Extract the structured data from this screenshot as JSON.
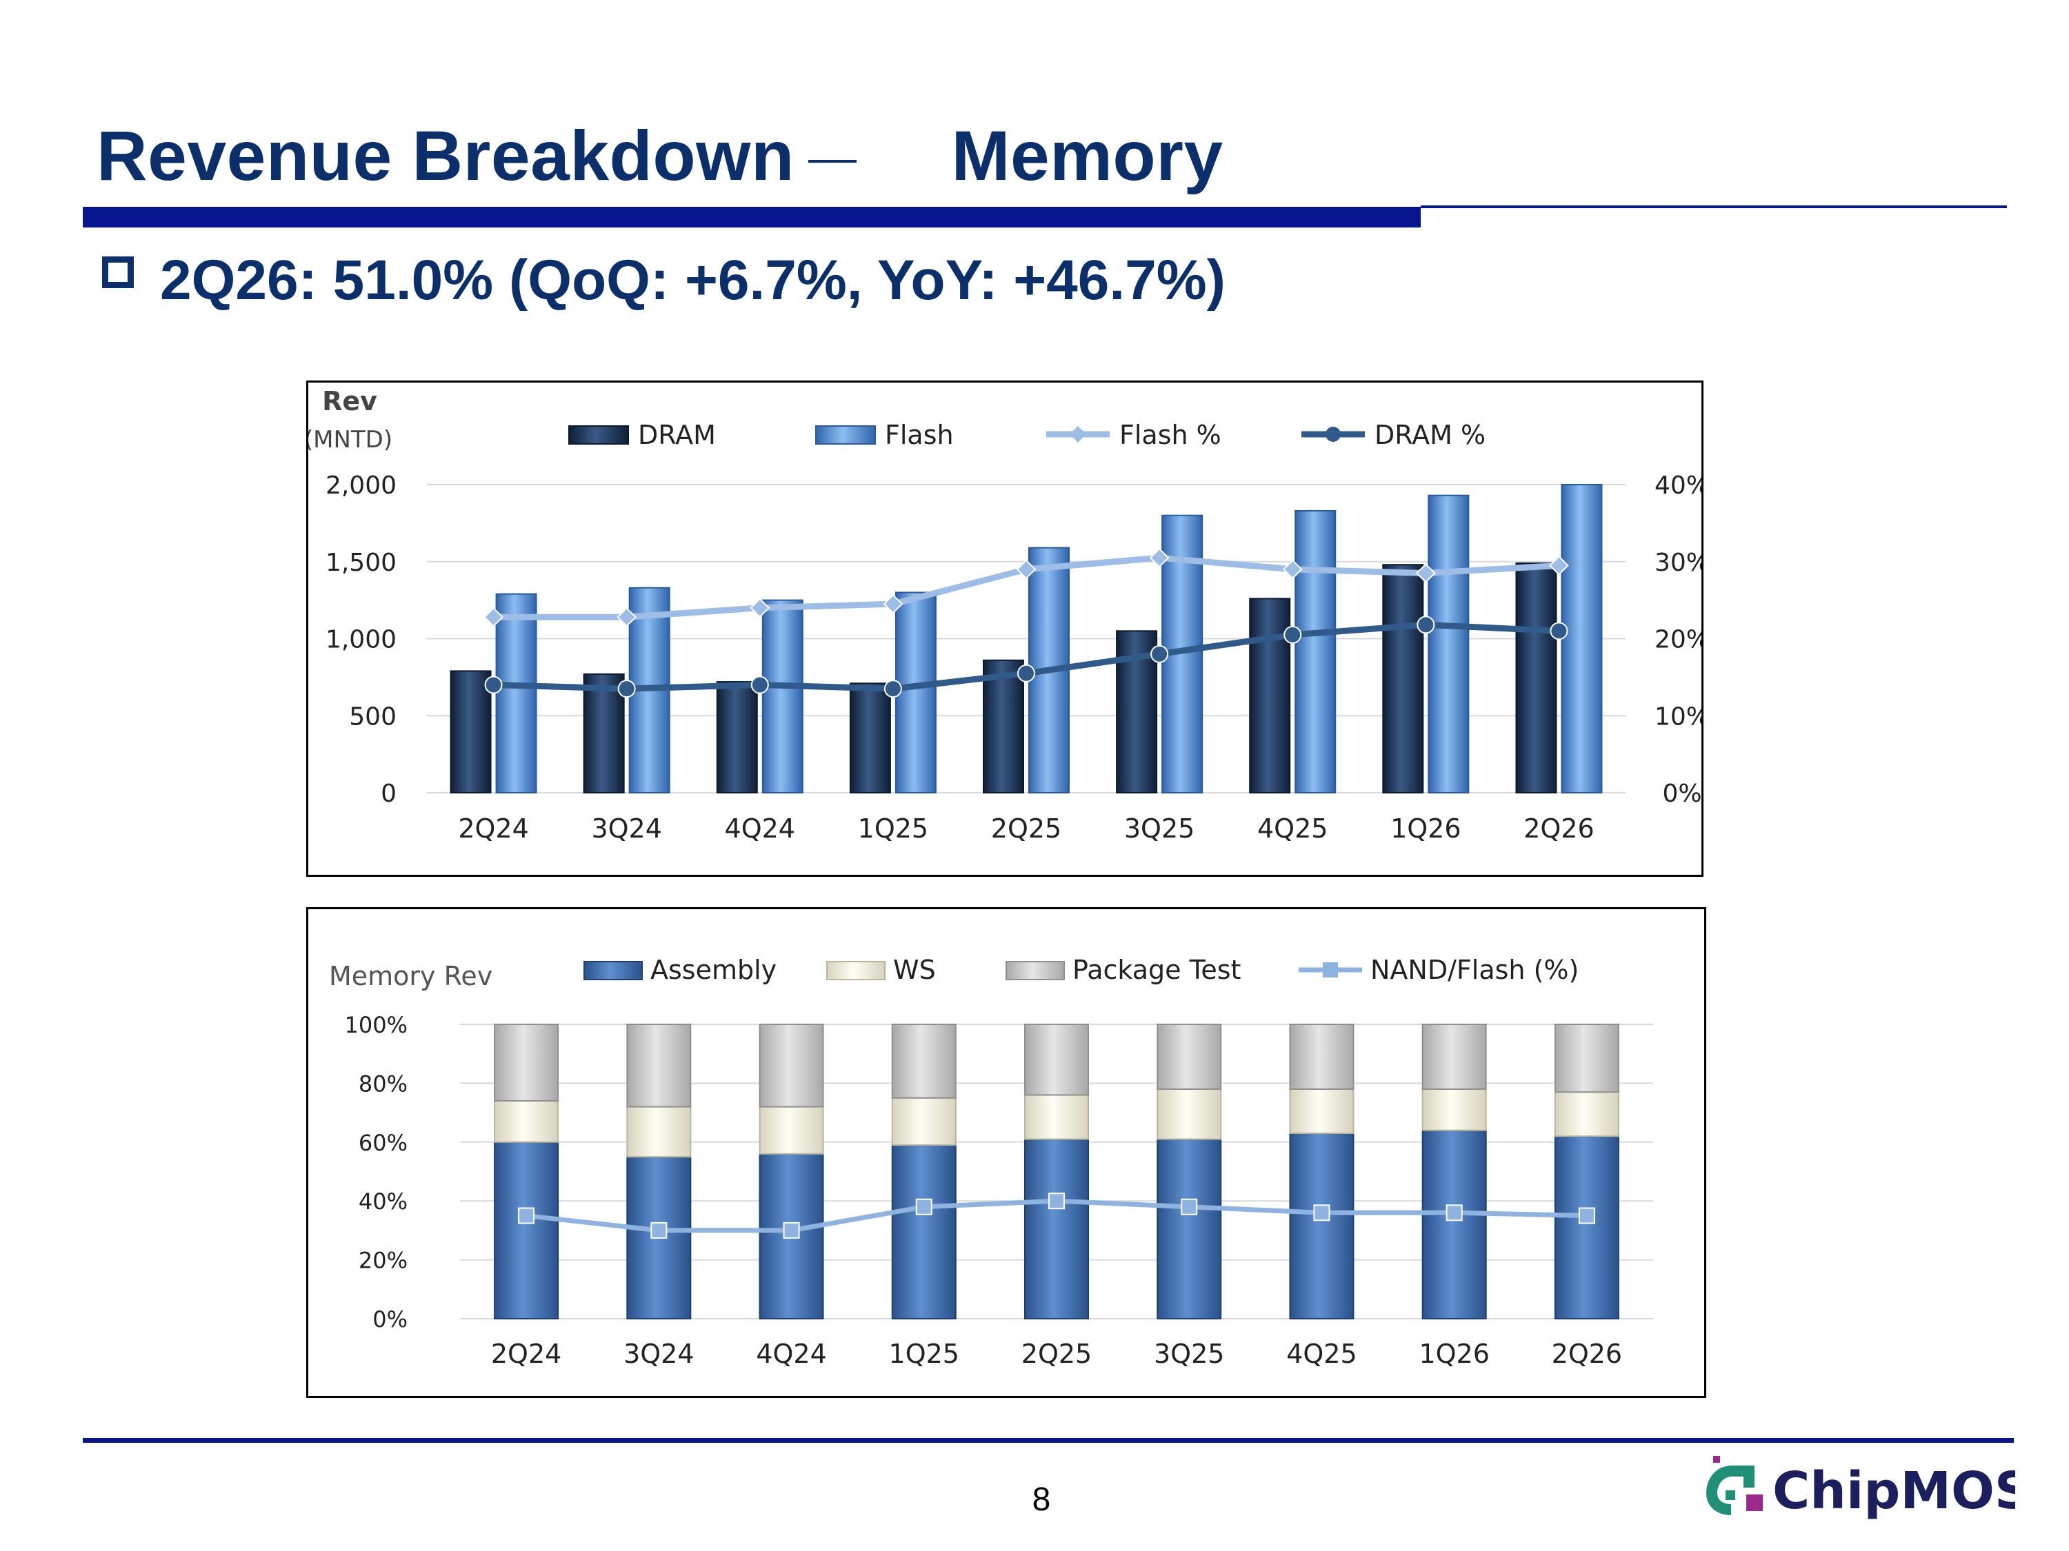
{
  "title": {
    "left": "Revenue Breakdown",
    "right": "Memory"
  },
  "subtitle": "2Q26: 51.0% (QoQ: +6.7%, YoY: +46.7%)",
  "page_number": "8",
  "logo_text": "ChipMOS",
  "colors": {
    "title": "#0b2f6b",
    "bar_line": "#07158f",
    "dram": "#1f3a5f",
    "flash": "#5b94d8",
    "flash_pct": "#9dbde6",
    "dram_pct": "#2f5a8a",
    "assembly": "#3c6aa6",
    "ws": "#f2f0e0",
    "package_test": "#c9c9c9",
    "nand": "#8fb3e0"
  },
  "chart_data": [
    {
      "type": "bar",
      "ylabel": "Rev",
      "ylabel_unit": "(MNTD)",
      "categories": [
        "2Q24",
        "3Q24",
        "4Q24",
        "1Q25",
        "2Q25",
        "3Q25",
        "4Q25",
        "1Q26",
        "2Q26"
      ],
      "ylim": [
        0,
        2000
      ],
      "yticks": [
        "0",
        "500",
        "1,000",
        "1,500",
        "2,000"
      ],
      "y2lim": [
        0,
        40
      ],
      "y2ticks": [
        "0%",
        "10%",
        "20%",
        "30%",
        "40%"
      ],
      "legend": [
        "DRAM",
        "Flash",
        "Flash %",
        "DRAM %"
      ],
      "legend_position": "top",
      "grid": true,
      "series": [
        {
          "name": "DRAM",
          "kind": "bar",
          "values": [
            790,
            770,
            720,
            710,
            860,
            1050,
            1260,
            1480,
            1490
          ]
        },
        {
          "name": "Flash",
          "kind": "bar",
          "values": [
            1290,
            1330,
            1250,
            1300,
            1590,
            1800,
            1830,
            1930,
            2000
          ]
        },
        {
          "name": "Flash %",
          "kind": "line",
          "axis": "right",
          "values": [
            22.8,
            22.8,
            24.0,
            24.5,
            29.0,
            30.5,
            29.0,
            28.5,
            29.5
          ]
        },
        {
          "name": "DRAM %",
          "kind": "line",
          "axis": "right",
          "values": [
            14.0,
            13.5,
            14.0,
            13.5,
            15.5,
            18.0,
            20.5,
            21.8,
            21.0
          ]
        }
      ]
    },
    {
      "type": "bar",
      "stacked": true,
      "ylabel": "Memory Rev",
      "categories": [
        "2Q24",
        "3Q24",
        "4Q24",
        "1Q25",
        "2Q25",
        "3Q25",
        "4Q25",
        "1Q26",
        "2Q26"
      ],
      "ylim": [
        0,
        100
      ],
      "yticks": [
        "0%",
        "20%",
        "40%",
        "60%",
        "80%",
        "100%"
      ],
      "legend": [
        "Assembly",
        "WS",
        "Package Test",
        "NAND/Flash (%)"
      ],
      "legend_position": "top",
      "grid": true,
      "series": [
        {
          "name": "Assembly",
          "kind": "bar",
          "values": [
            60,
            55,
            56,
            59,
            61,
            61,
            63,
            64,
            62
          ]
        },
        {
          "name": "WS",
          "kind": "bar",
          "values": [
            14,
            17,
            16,
            16,
            15,
            17,
            15,
            14,
            15
          ]
        },
        {
          "name": "Package Test",
          "kind": "bar",
          "values": [
            26,
            28,
            28,
            25,
            24,
            22,
            22,
            22,
            23
          ]
        },
        {
          "name": "NAND/Flash (%)",
          "kind": "line",
          "values": [
            35,
            30,
            30,
            38,
            40,
            38,
            36,
            36,
            35
          ]
        }
      ]
    }
  ]
}
